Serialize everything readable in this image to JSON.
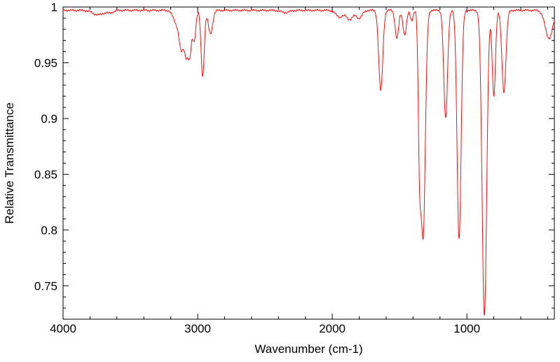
{
  "chart_data": {
    "type": "line",
    "title": "",
    "xlabel": "Wavenumber (cm-1)",
    "ylabel": "Relative Transmittance",
    "grid": false,
    "legend_position": "none",
    "line_color": "#fb0d0d",
    "axis_color": "#000000",
    "background_color": "#ffffff",
    "x_axis": {
      "min": 350,
      "max": 4000,
      "reversed": true,
      "major_ticks": [
        4000,
        3000,
        2000,
        1000
      ],
      "tick_labels": [
        "4000",
        "3000",
        "2000",
        "1000"
      ],
      "minor_step": 200
    },
    "y_axis": {
      "min": 0.72,
      "max": 1.0,
      "major_ticks": [
        0.75,
        0.8,
        0.85,
        0.9,
        0.95,
        1
      ],
      "tick_labels": [
        "0.75",
        "0.8",
        "0.85",
        "0.9",
        "0.95",
        "1"
      ],
      "minor_step": 0.01
    },
    "baseline_transmittance": 0.997,
    "noise_amplitude": 0.0006,
    "sample_step": 2,
    "peaks": [
      {
        "center": 3740,
        "min_transmittance": 0.993,
        "width": 40
      },
      {
        "center": 3650,
        "min_transmittance": 0.995,
        "width": 25
      },
      {
        "center": 3155,
        "min_transmittance": 0.985,
        "width": 25
      },
      {
        "center": 3120,
        "min_transmittance": 0.966,
        "width": 16
      },
      {
        "center": 3085,
        "min_transmittance": 0.96,
        "width": 14
      },
      {
        "center": 3058,
        "min_transmittance": 0.96,
        "width": 12
      },
      {
        "center": 3026,
        "min_transmittance": 0.97,
        "width": 12
      },
      {
        "center": 2963,
        "min_transmittance": 0.938,
        "width": 12
      },
      {
        "center": 2905,
        "min_transmittance": 0.976,
        "width": 16
      },
      {
        "center": 2350,
        "min_transmittance": 0.995,
        "width": 30
      },
      {
        "center": 1945,
        "min_transmittance": 0.991,
        "width": 28
      },
      {
        "center": 1870,
        "min_transmittance": 0.989,
        "width": 24
      },
      {
        "center": 1800,
        "min_transmittance": 0.99,
        "width": 22
      },
      {
        "center": 1640,
        "min_transmittance": 0.925,
        "width": 15
      },
      {
        "center": 1520,
        "min_transmittance": 0.972,
        "width": 13
      },
      {
        "center": 1462,
        "min_transmittance": 0.975,
        "width": 13
      },
      {
        "center": 1410,
        "min_transmittance": 0.988,
        "width": 10
      },
      {
        "center": 1352,
        "min_transmittance": 0.885,
        "width": 10
      },
      {
        "center": 1325,
        "min_transmittance": 0.795,
        "width": 16
      },
      {
        "center": 1158,
        "min_transmittance": 0.9,
        "width": 14
      },
      {
        "center": 1058,
        "min_transmittance": 0.792,
        "width": 15
      },
      {
        "center": 870,
        "min_transmittance": 0.723,
        "width": 17
      },
      {
        "center": 800,
        "min_transmittance": 0.92,
        "width": 12
      },
      {
        "center": 725,
        "min_transmittance": 0.924,
        "width": 15
      },
      {
        "center": 390,
        "min_transmittance": 0.972,
        "width": 28
      }
    ]
  }
}
